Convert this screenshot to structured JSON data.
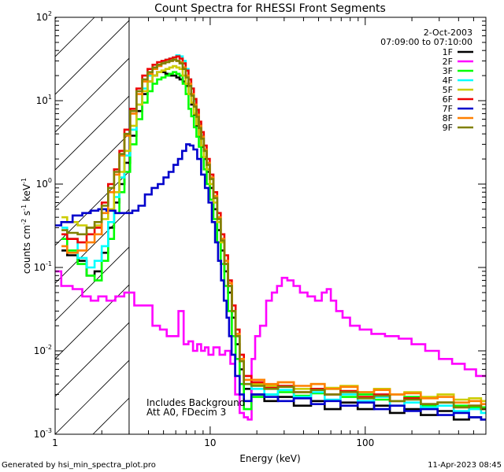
{
  "chart_data": {
    "type": "line",
    "title": "Count Spectra for RHESSI Front Segments",
    "xlabel": "Energy (keV)",
    "ylabel": "counts cm-2 s-1 keV-1",
    "ylabel_parts": {
      "base": "counts cm",
      "sup1": "-2",
      "mid": " s",
      "sup2": "-1",
      "end": " keV",
      "sup3": "-1"
    },
    "xscale": "log",
    "yscale": "log",
    "xlim": [
      1,
      600
    ],
    "ylim": [
      0.001,
      100
    ],
    "x_ticks": [
      {
        "v": 1,
        "label": "1"
      },
      {
        "v": 10,
        "label": "10"
      },
      {
        "v": 100,
        "label": "100"
      }
    ],
    "y_ticks": [
      {
        "v": 100,
        "base": "10",
        "exp": "2"
      },
      {
        "v": 10,
        "base": "10",
        "exp": "1"
      },
      {
        "v": 1,
        "base": "10",
        "exp": "0"
      },
      {
        "v": 0.1,
        "base": "10",
        "exp": "-1"
      },
      {
        "v": 0.01,
        "base": "10",
        "exp": "-2"
      },
      {
        "v": 0.001,
        "base": "10",
        "exp": "-3"
      }
    ],
    "date": "2-Oct-2003",
    "time_range": "07:09:00 to 07:10:00",
    "annotations": [
      "Includes Background",
      "Att A0, FDecim 3"
    ],
    "shaded_region_xmax": 3,
    "legend": {
      "placement": "top-right"
    },
    "series": [
      {
        "name": "1F",
        "color": "#000000",
        "x": [
          1.1,
          1.3,
          1.5,
          1.7,
          1.9,
          2.1,
          2.3,
          2.5,
          2.7,
          2.9,
          3.2,
          3.5,
          3.8,
          4.1,
          4.4,
          4.7,
          5.0,
          5.3,
          5.6,
          5.9,
          6.2,
          6.5,
          6.8,
          7.1,
          7.4,
          7.7,
          8.0,
          8.3,
          8.6,
          8.9,
          9.3,
          9.7,
          10.2,
          10.8,
          11.4,
          12.0,
          12.7,
          13.4,
          14.2,
          15.0,
          16.0,
          17.0,
          20.0,
          25.0,
          30.0,
          40.0,
          50.0,
          60.0,
          80.0,
          100.0,
          130.0,
          160.0,
          200.0,
          260.0,
          330.0,
          420.0,
          520.0,
          600.0
        ],
        "values": [
          0.16,
          0.14,
          0.12,
          0.08,
          0.09,
          0.15,
          0.3,
          0.6,
          1.0,
          1.8,
          3.8,
          7.5,
          12,
          17,
          20,
          22,
          22,
          21,
          20,
          20,
          19,
          18,
          17,
          15,
          12,
          9,
          6.8,
          5.0,
          3.7,
          2.8,
          2.0,
          1.4,
          0.9,
          0.5,
          0.28,
          0.16,
          0.09,
          0.05,
          0.025,
          0.012,
          0.006,
          0.0035,
          0.003,
          0.0025,
          0.0028,
          0.0022,
          0.0025,
          0.002,
          0.0024,
          0.002,
          0.0022,
          0.0018,
          0.002,
          0.0017,
          0.0019,
          0.0015,
          0.0016,
          0.0015
        ]
      },
      {
        "name": "2F",
        "color": "#ff00ff",
        "x": [
          1.0,
          1.2,
          1.4,
          1.6,
          1.8,
          2.0,
          2.3,
          2.6,
          3.0,
          3.5,
          4.0,
          4.5,
          5.0,
          5.5,
          6.0,
          6.5,
          7.0,
          7.5,
          8.0,
          8.5,
          9.0,
          9.5,
          10.0,
          11.0,
          12.0,
          13.0,
          14.0,
          15.0,
          16.0,
          17.0,
          18.0,
          19.0,
          20.0,
          22.0,
          24.0,
          26.0,
          28.0,
          30.0,
          33.0,
          36.0,
          40.0,
          45.0,
          50.0,
          55.0,
          58.0,
          62.0,
          68.0,
          75.0,
          85.0,
          100.0,
          120.0,
          150.0,
          180.0,
          220.0,
          270.0,
          330.0,
          400.0,
          480.0,
          560.0,
          600.0
        ],
        "values": [
          0.09,
          0.06,
          0.055,
          0.045,
          0.04,
          0.045,
          0.04,
          0.045,
          0.05,
          0.035,
          0.035,
          0.02,
          0.018,
          0.015,
          0.015,
          0.03,
          0.012,
          0.013,
          0.01,
          0.012,
          0.01,
          0.011,
          0.009,
          0.011,
          0.009,
          0.01,
          0.007,
          0.003,
          0.0018,
          0.0016,
          0.0015,
          0.008,
          0.015,
          0.02,
          0.04,
          0.05,
          0.06,
          0.075,
          0.07,
          0.06,
          0.05,
          0.045,
          0.04,
          0.05,
          0.055,
          0.04,
          0.03,
          0.025,
          0.02,
          0.018,
          0.016,
          0.015,
          0.014,
          0.012,
          0.01,
          0.008,
          0.007,
          0.006,
          0.005,
          0.005
        ]
      },
      {
        "name": "3F",
        "color": "#00ff00",
        "x": [
          1.1,
          1.3,
          1.5,
          1.7,
          1.9,
          2.1,
          2.3,
          2.5,
          2.7,
          2.9,
          3.2,
          3.5,
          3.8,
          4.1,
          4.4,
          4.7,
          5.0,
          5.3,
          5.6,
          5.9,
          6.2,
          6.5,
          6.8,
          7.1,
          7.4,
          7.7,
          8.0,
          8.3,
          8.6,
          8.9,
          9.3,
          9.7,
          10.2,
          10.8,
          11.4,
          12.0,
          12.7,
          13.4,
          14.2,
          15.0,
          16.0,
          17.0,
          20.0,
          25.0,
          30.0,
          40.0,
          50.0,
          60.0,
          80.0,
          100.0,
          130.0,
          160.0,
          200.0,
          260.0,
          330.0,
          420.0,
          520.0,
          600.0
        ],
        "values": [
          0.22,
          0.16,
          0.11,
          0.08,
          0.07,
          0.12,
          0.22,
          0.45,
          0.8,
          1.4,
          3.0,
          6.0,
          9.5,
          13,
          16,
          18,
          19,
          20,
          21,
          22,
          21,
          20,
          16,
          12,
          8,
          6.5,
          4.8,
          3.7,
          2.8,
          2.1,
          1.5,
          1.0,
          0.65,
          0.38,
          0.2,
          0.11,
          0.06,
          0.03,
          0.015,
          0.008,
          0.004,
          0.002,
          0.0028,
          0.003,
          0.0032,
          0.0029,
          0.0031,
          0.0035,
          0.0028,
          0.003,
          0.0026,
          0.0025,
          0.0028,
          0.0022,
          0.0024,
          0.0022,
          0.0021,
          0.0021
        ]
      },
      {
        "name": "4F",
        "color": "#00ffff",
        "x": [
          1.1,
          1.3,
          1.5,
          1.7,
          1.9,
          2.1,
          2.3,
          2.5,
          2.7,
          2.9,
          3.2,
          3.5,
          3.8,
          4.1,
          4.4,
          4.7,
          5.0,
          5.3,
          5.6,
          5.9,
          6.2,
          6.5,
          6.8,
          7.1,
          7.4,
          7.7,
          8.0,
          8.3,
          8.6,
          8.9,
          9.3,
          9.7,
          10.2,
          10.8,
          11.4,
          12.0,
          12.7,
          13.4,
          14.2,
          15.0,
          16.0,
          17.0,
          20.0,
          25.0,
          30.0,
          40.0,
          50.0,
          60.0,
          80.0,
          100.0,
          130.0,
          160.0,
          200.0,
          260.0,
          330.0,
          420.0,
          520.0,
          600.0
        ],
        "values": [
          0.3,
          0.22,
          0.13,
          0.1,
          0.12,
          0.18,
          0.35,
          0.7,
          1.2,
          2.2,
          4.5,
          9.0,
          14,
          20,
          24,
          27,
          29,
          31,
          32,
          33,
          35,
          34,
          30,
          24,
          18,
          14,
          10,
          7.5,
          5.2,
          3.8,
          2.6,
          1.8,
          1.2,
          0.7,
          0.4,
          0.22,
          0.12,
          0.06,
          0.03,
          0.015,
          0.008,
          0.004,
          0.0035,
          0.003,
          0.0034,
          0.0028,
          0.0032,
          0.0026,
          0.003,
          0.0025,
          0.0028,
          0.0022,
          0.0024,
          0.0021,
          0.0022,
          0.0019,
          0.002,
          0.0018
        ]
      },
      {
        "name": "5F",
        "color": "#cccc00",
        "x": [
          1.1,
          1.3,
          1.5,
          1.7,
          1.9,
          2.1,
          2.3,
          2.5,
          2.7,
          2.9,
          3.2,
          3.5,
          3.8,
          4.1,
          4.4,
          4.7,
          5.0,
          5.3,
          5.6,
          5.9,
          6.2,
          6.5,
          6.8,
          7.1,
          7.4,
          7.7,
          8.0,
          8.3,
          8.6,
          8.9,
          9.3,
          9.7,
          10.2,
          10.8,
          11.4,
          12.0,
          12.7,
          13.4,
          14.2,
          15.0,
          16.0,
          17.0,
          20.0,
          25.0,
          30.0,
          40.0,
          50.0,
          60.0,
          80.0,
          100.0,
          130.0,
          160.0,
          200.0,
          260.0,
          330.0,
          420.0,
          520.0,
          600.0
        ],
        "values": [
          0.4,
          0.35,
          0.32,
          0.3,
          0.32,
          0.38,
          0.5,
          0.8,
          1.4,
          2.5,
          5.0,
          9.0,
          13,
          17,
          20,
          22,
          23,
          24,
          25,
          26,
          25,
          24,
          20,
          16,
          12,
          9.5,
          7,
          5.2,
          3.9,
          2.9,
          2.1,
          1.5,
          1.0,
          0.6,
          0.35,
          0.2,
          0.11,
          0.06,
          0.03,
          0.015,
          0.008,
          0.0045,
          0.004,
          0.0038,
          0.0042,
          0.0035,
          0.004,
          0.0036,
          0.0038,
          0.0032,
          0.0035,
          0.003,
          0.0032,
          0.0028,
          0.003,
          0.0026,
          0.0027,
          0.0025
        ]
      },
      {
        "name": "6F",
        "color": "#ee0000",
        "x": [
          1.1,
          1.3,
          1.5,
          1.7,
          1.9,
          2.1,
          2.3,
          2.5,
          2.7,
          2.9,
          3.2,
          3.5,
          3.8,
          4.1,
          4.4,
          4.7,
          5.0,
          5.3,
          5.6,
          5.9,
          6.2,
          6.5,
          6.8,
          7.1,
          7.4,
          7.7,
          8.0,
          8.3,
          8.6,
          8.9,
          9.3,
          9.7,
          10.2,
          10.8,
          11.4,
          12.0,
          12.7,
          13.4,
          14.2,
          15.0,
          16.0,
          17.0,
          20.0,
          25.0,
          30.0,
          40.0,
          50.0,
          60.0,
          80.0,
          100.0,
          130.0,
          160.0,
          200.0,
          260.0,
          330.0,
          420.0,
          520.0,
          600.0
        ],
        "values": [
          0.25,
          0.22,
          0.2,
          0.25,
          0.3,
          0.6,
          1.0,
          1.5,
          2.5,
          4.5,
          8.0,
          14,
          20,
          24,
          27,
          29,
          30,
          31,
          32,
          33,
          34,
          32,
          28,
          23,
          18,
          14,
          10.5,
          7.8,
          5.6,
          4.2,
          2.9,
          2.0,
          1.3,
          0.8,
          0.45,
          0.25,
          0.14,
          0.07,
          0.035,
          0.018,
          0.009,
          0.005,
          0.0042,
          0.0036,
          0.0038,
          0.0032,
          0.0035,
          0.003,
          0.0033,
          0.0028,
          0.003,
          0.0025,
          0.0027,
          0.0023,
          0.0024,
          0.0021,
          0.0022,
          0.002
        ]
      },
      {
        "name": "7F",
        "color": "#0000cc",
        "x": [
          1.0,
          1.2,
          1.4,
          1.6,
          1.8,
          2.0,
          2.3,
          2.6,
          3.0,
          3.3,
          3.6,
          4.0,
          4.4,
          4.8,
          5.2,
          5.6,
          6.0,
          6.4,
          6.8,
          7.2,
          7.6,
          8.0,
          8.5,
          9.0,
          9.5,
          10.0,
          10.5,
          11.0,
          11.5,
          12.0,
          12.5,
          13.0,
          13.5,
          14.0,
          15.0,
          16.0,
          17.0,
          20.0,
          25.0,
          30.0,
          40.0,
          50.0,
          60.0,
          80.0,
          100.0,
          130.0,
          160.0,
          200.0,
          260.0,
          330.0,
          420.0,
          520.0,
          600.0
        ],
        "values": [
          0.32,
          0.35,
          0.42,
          0.45,
          0.48,
          0.5,
          0.48,
          0.45,
          0.45,
          0.48,
          0.55,
          0.75,
          0.9,
          1.0,
          1.2,
          1.4,
          1.7,
          2.0,
          2.5,
          3.0,
          2.9,
          2.6,
          2.0,
          1.3,
          0.9,
          0.6,
          0.35,
          0.2,
          0.12,
          0.07,
          0.04,
          0.025,
          0.015,
          0.009,
          0.005,
          0.003,
          0.0025,
          0.003,
          0.0028,
          0.0025,
          0.0027,
          0.0023,
          0.0025,
          0.0022,
          0.0024,
          0.002,
          0.0022,
          0.0019,
          0.002,
          0.0017,
          0.0018,
          0.0016,
          0.0015
        ]
      },
      {
        "name": "8F",
        "color": "#ff8000",
        "x": [
          1.1,
          1.3,
          1.5,
          1.7,
          1.9,
          2.1,
          2.3,
          2.5,
          2.7,
          2.9,
          3.2,
          3.5,
          3.8,
          4.1,
          4.4,
          4.7,
          5.0,
          5.3,
          5.6,
          5.9,
          6.2,
          6.5,
          6.8,
          7.1,
          7.4,
          7.7,
          8.0,
          8.3,
          8.6,
          8.9,
          9.3,
          9.7,
          10.2,
          10.8,
          11.4,
          12.0,
          12.7,
          13.4,
          14.2,
          15.0,
          16.0,
          17.0,
          20.0,
          25.0,
          30.0,
          40.0,
          50.0,
          60.0,
          80.0,
          100.0,
          130.0,
          160.0,
          200.0,
          260.0,
          330.0,
          420.0,
          520.0,
          600.0
        ],
        "values": [
          0.18,
          0.15,
          0.16,
          0.2,
          0.25,
          0.45,
          0.8,
          1.3,
          2.2,
          3.8,
          7.0,
          12,
          17,
          21,
          24,
          26,
          28,
          29,
          30,
          31,
          30,
          29,
          25,
          20,
          16,
          12,
          9,
          6.8,
          5.0,
          3.7,
          2.6,
          1.8,
          1.2,
          0.72,
          0.4,
          0.22,
          0.12,
          0.065,
          0.03,
          0.016,
          0.008,
          0.0045,
          0.0045,
          0.004,
          0.0042,
          0.0038,
          0.004,
          0.0035,
          0.0037,
          0.0032,
          0.0034,
          0.003,
          0.0031,
          0.0027,
          0.0028,
          0.0024,
          0.0025,
          0.0023
        ]
      },
      {
        "name": "9F",
        "color": "#808000",
        "x": [
          1.1,
          1.3,
          1.5,
          1.7,
          1.9,
          2.1,
          2.3,
          2.5,
          2.7,
          2.9,
          3.2,
          3.5,
          3.8,
          4.1,
          4.4,
          4.7,
          5.0,
          5.3,
          5.6,
          5.9,
          6.2,
          6.5,
          6.8,
          7.1,
          7.4,
          7.7,
          8.0,
          8.3,
          8.6,
          8.9,
          9.3,
          9.7,
          10.2,
          10.8,
          11.4,
          12.0,
          12.7,
          13.4,
          14.2,
          15.0,
          16.0,
          17.0,
          20.0,
          25.0,
          30.0,
          40.0,
          50.0,
          60.0,
          80.0,
          100.0,
          130.0,
          160.0,
          200.0,
          260.0,
          330.0,
          420.0,
          520.0,
          600.0
        ],
        "values": [
          0.28,
          0.26,
          0.25,
          0.3,
          0.35,
          0.55,
          0.9,
          1.4,
          2.3,
          4.0,
          7.5,
          13,
          18,
          22,
          25,
          27,
          28,
          29,
          30,
          31,
          30,
          28,
          24,
          19,
          15,
          11.5,
          8.5,
          6.4,
          4.7,
          3.5,
          2.5,
          1.7,
          1.15,
          0.68,
          0.38,
          0.21,
          0.11,
          0.06,
          0.03,
          0.015,
          0.0075,
          0.004,
          0.0038,
          0.0035,
          0.0037,
          0.0032,
          0.0034,
          0.003,
          0.0032,
          0.0027,
          0.0029,
          0.0025,
          0.0026,
          0.0023,
          0.0024,
          0.0021,
          0.0022,
          0.002
        ]
      }
    ]
  },
  "footer": {
    "left": "Generated by hsi_min_spectra_plot.pro",
    "right": "11-Apr-2023 08:45"
  }
}
